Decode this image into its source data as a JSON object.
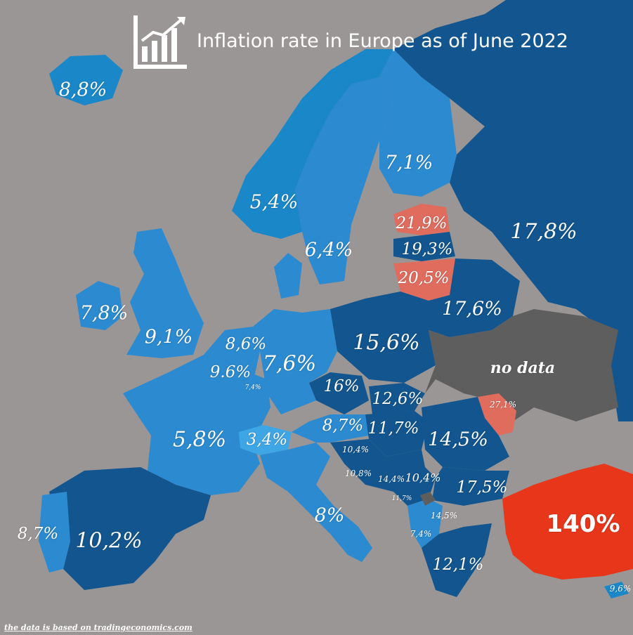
{
  "title": "Inflation rate in Europe as of June 2022",
  "footer": "the data is based on tradingeconomics.com",
  "icon": "line-chart-icon",
  "colors": {
    "sea": "#9b9696",
    "light_blue": "#1a87c9",
    "mid_blue": "#2b8ad0",
    "dark_blue": "#12558f",
    "switzerland": "#3fa6e6",
    "baltic_red": "#e06c5e",
    "turkey_red": "#e8361a",
    "no_data": "#5e5e5e"
  },
  "labels": {
    "iceland": "8,8%",
    "finland": "7,1%",
    "norway": "5,4%",
    "sweden": "6,4%",
    "estonia": "21,9%",
    "latvia": "19,3%",
    "lithuania": "20,5%",
    "russia": "17,8%",
    "belarus": "17,6%",
    "ireland": "7,8%",
    "uk": "9,1%",
    "netherlands": "8,6%",
    "belgium": "9.6%",
    "luxembourg": "7,4%",
    "germany": "7,6%",
    "poland": "15,6%",
    "czechia": "16%",
    "slovakia": "12,6%",
    "ukraine": "no data",
    "moldova": "27,1%",
    "france": "5,8%",
    "switzerland": "3,4%",
    "austria": "8,7%",
    "hungary": "11,7%",
    "romania": "14,5%",
    "slovenia": "10,4%",
    "croatia": "10,8%",
    "bosnia": "14,4%",
    "serbia": "10,4%",
    "montenegro": "11,7%",
    "bulgaria": "17,5%",
    "north_macedonia": "14,5%",
    "albania": "7,4%",
    "italy": "8%",
    "greece": "12,1%",
    "turkey": "140%",
    "portugal": "8,7%",
    "spain": "10,2%",
    "cyprus": "9,6%"
  }
}
